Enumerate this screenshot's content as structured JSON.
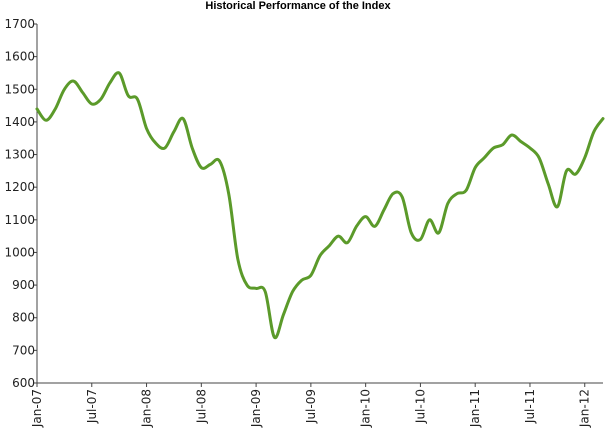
{
  "chart_data": {
    "type": "line",
    "title": "Historical Performance of the Index",
    "xlabel": "",
    "ylabel": "",
    "ylim": [
      600,
      1700
    ],
    "y_ticks": [
      600,
      700,
      800,
      900,
      1000,
      1100,
      1200,
      1300,
      1400,
      1500,
      1600,
      1700
    ],
    "x_ticks": [
      "Jan-07",
      "Jul-07",
      "Jan-08",
      "Jul-08",
      "Jan-09",
      "Jul-09",
      "Jan-10",
      "Jul-10",
      "Jan-11",
      "Jul-11",
      "Jan-12"
    ],
    "x_range": [
      "2007-01",
      "2012-03"
    ],
    "grid": false,
    "legend": "none",
    "series": [
      {
        "color": "#5b9a2a",
        "x": [
          "2007-01",
          "2007-02",
          "2007-03",
          "2007-04",
          "2007-05",
          "2007-06",
          "2007-07",
          "2007-08",
          "2007-09",
          "2007-10",
          "2007-11",
          "2007-12",
          "2008-01",
          "2008-02",
          "2008-03",
          "2008-04",
          "2008-05",
          "2008-06",
          "2008-07",
          "2008-08",
          "2008-09",
          "2008-10",
          "2008-11",
          "2008-12",
          "2009-01",
          "2009-02",
          "2009-03",
          "2009-04",
          "2009-05",
          "2009-06",
          "2009-07",
          "2009-08",
          "2009-09",
          "2009-10",
          "2009-11",
          "2009-12",
          "2010-01",
          "2010-02",
          "2010-03",
          "2010-04",
          "2010-05",
          "2010-06",
          "2010-07",
          "2010-08",
          "2010-09",
          "2010-10",
          "2010-11",
          "2010-12",
          "2011-01",
          "2011-02",
          "2011-03",
          "2011-04",
          "2011-05",
          "2011-06",
          "2011-07",
          "2011-08",
          "2011-09",
          "2011-10",
          "2011-11",
          "2011-12",
          "2012-01",
          "2012-02",
          "2012-03"
        ],
        "values": [
          1440,
          1405,
          1440,
          1500,
          1525,
          1490,
          1455,
          1470,
          1520,
          1550,
          1480,
          1470,
          1380,
          1335,
          1320,
          1370,
          1410,
          1320,
          1260,
          1270,
          1280,
          1180,
          980,
          900,
          890,
          880,
          740,
          810,
          880,
          915,
          930,
          990,
          1020,
          1050,
          1030,
          1080,
          1110,
          1080,
          1130,
          1180,
          1170,
          1060,
          1040,
          1100,
          1060,
          1150,
          1180,
          1190,
          1260,
          1290,
          1320,
          1330,
          1360,
          1340,
          1320,
          1290,
          1210,
          1140,
          1250,
          1240,
          1290,
          1370,
          1410
        ]
      }
    ]
  }
}
